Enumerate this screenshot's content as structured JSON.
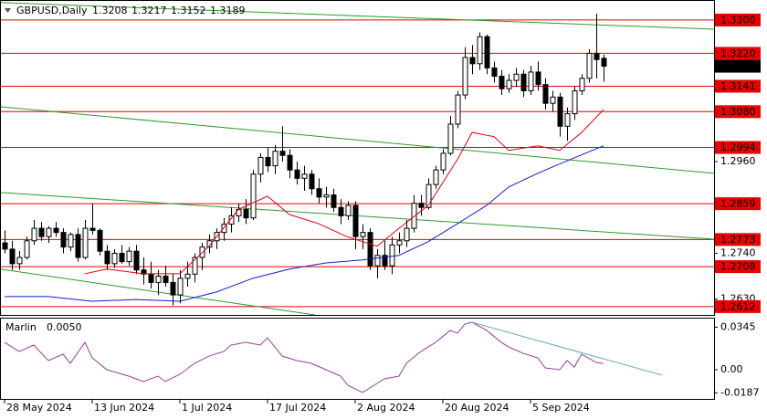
{
  "chart_data": [
    {
      "type": "candlestick",
      "title": "GBPUSD,Daily",
      "categories": [
        "28 May 2024",
        null,
        null,
        null,
        null,
        null,
        null,
        null,
        null,
        null,
        null,
        null,
        "13 Jun 2024",
        null,
        null,
        null,
        null,
        null,
        null,
        null,
        null,
        null,
        null,
        null,
        "1 Jul 2024",
        null,
        null,
        null,
        null,
        null,
        null,
        null,
        null,
        null,
        null,
        null,
        "17 Jul 2024",
        null,
        null,
        null,
        null,
        null,
        null,
        null,
        null,
        null,
        null,
        null,
        "2 Aug 2024",
        null,
        null,
        null,
        null,
        null,
        null,
        null,
        null,
        null,
        null,
        null,
        "20 Aug 2024",
        null,
        null,
        null,
        null,
        null,
        null,
        null,
        null,
        null,
        null,
        null,
        "5 Sep 2024",
        null,
        null,
        null,
        null,
        null,
        null,
        null,
        null,
        null,
        null
      ],
      "xlim": [
        -0.625,
        97.125
      ],
      "ylim": [
        1.2592,
        1.3348
      ],
      "open": [
        1.2765,
        1.275,
        1.2715,
        1.273,
        1.277,
        1.28,
        1.278,
        1.28,
        1.279,
        1.2755,
        1.2785,
        1.273,
        1.28,
        1.2795,
        1.2745,
        1.2715,
        1.274,
        1.272,
        1.2745,
        1.27,
        1.269,
        1.267,
        1.2685,
        1.267,
        1.264,
        1.268,
        1.269,
        1.273,
        1.2755,
        1.277,
        1.279,
        1.281,
        1.283,
        1.2845,
        1.2825,
        1.293,
        1.297,
        1.295,
        1.2985,
        1.2975,
        1.294,
        1.292,
        1.293,
        1.2895,
        1.2875,
        1.288,
        1.285,
        1.283,
        1.2855,
        1.278,
        1.279,
        1.271,
        1.2735,
        1.271,
        1.276,
        1.277,
        1.28,
        1.286,
        1.285,
        1.2905,
        1.294,
        1.298,
        1.305,
        1.312,
        1.321,
        1.3195,
        1.326,
        1.3185,
        1.3165,
        1.3135,
        1.3155,
        1.317,
        1.313,
        1.3175,
        1.3145,
        1.31,
        1.3115,
        1.3045,
        1.3075,
        1.313,
        1.316,
        1.322,
        1.3208
      ],
      "high": [
        1.2795,
        1.277,
        1.2745,
        1.278,
        1.282,
        1.2815,
        1.2805,
        1.2815,
        1.28,
        1.279,
        1.28,
        1.282,
        1.286,
        1.28,
        1.276,
        1.275,
        1.276,
        1.2755,
        1.276,
        1.273,
        1.272,
        1.27,
        1.271,
        1.269,
        1.27,
        1.272,
        1.274,
        1.2765,
        1.2785,
        1.28,
        1.2825,
        1.285,
        1.286,
        1.287,
        1.294,
        1.298,
        1.2995,
        1.3,
        1.3045,
        1.299,
        1.296,
        1.295,
        1.294,
        1.292,
        1.29,
        1.2895,
        1.287,
        1.2865,
        1.2865,
        1.281,
        1.28,
        1.275,
        1.277,
        1.278,
        1.279,
        1.282,
        1.288,
        1.288,
        1.292,
        1.295,
        1.299,
        1.307,
        1.313,
        1.3235,
        1.324,
        1.327,
        1.3265,
        1.32,
        1.318,
        1.317,
        1.3185,
        1.318,
        1.319,
        1.32,
        1.316,
        1.313,
        1.3125,
        1.309,
        1.314,
        1.317,
        1.323,
        1.3315,
        1.3217
      ],
      "low": [
        1.274,
        1.27,
        1.27,
        1.2725,
        1.276,
        1.277,
        1.2765,
        1.278,
        1.274,
        1.2745,
        1.272,
        1.2725,
        1.2785,
        1.2735,
        1.27,
        1.2705,
        1.2715,
        1.271,
        1.269,
        1.2665,
        1.2655,
        1.264,
        1.266,
        1.2615,
        1.262,
        1.266,
        1.267,
        1.27,
        1.274,
        1.275,
        1.277,
        1.279,
        1.2815,
        1.281,
        1.282,
        1.291,
        1.2935,
        1.293,
        1.296,
        1.292,
        1.2905,
        1.289,
        1.288,
        1.286,
        1.285,
        1.284,
        1.281,
        1.282,
        1.275,
        1.275,
        1.27,
        1.268,
        1.27,
        1.269,
        1.274,
        1.2755,
        1.279,
        1.283,
        1.2845,
        1.2895,
        1.293,
        1.2975,
        1.304,
        1.311,
        1.317,
        1.318,
        1.317,
        1.315,
        1.312,
        1.3125,
        1.314,
        1.3115,
        1.312,
        1.313,
        1.3085,
        1.308,
        1.302,
        1.301,
        1.306,
        1.312,
        1.315,
        1.316,
        1.3152
      ],
      "close": [
        1.275,
        1.2715,
        1.273,
        1.277,
        1.28,
        1.278,
        1.28,
        1.279,
        1.2755,
        1.2785,
        1.273,
        1.28,
        1.2795,
        1.2745,
        1.2715,
        1.274,
        1.272,
        1.2745,
        1.27,
        1.269,
        1.267,
        1.2685,
        1.267,
        1.264,
        1.268,
        1.269,
        1.273,
        1.2755,
        1.277,
        1.279,
        1.281,
        1.283,
        1.2845,
        1.2825,
        1.293,
        1.297,
        1.295,
        1.2985,
        1.2975,
        1.294,
        1.292,
        1.293,
        1.2895,
        1.2875,
        1.288,
        1.285,
        1.283,
        1.2855,
        1.278,
        1.279,
        1.271,
        1.2735,
        1.271,
        1.276,
        1.277,
        1.28,
        1.286,
        1.285,
        1.2905,
        1.294,
        1.298,
        1.305,
        1.312,
        1.321,
        1.3195,
        1.326,
        1.3185,
        1.3165,
        1.3135,
        1.3155,
        1.317,
        1.313,
        1.3175,
        1.3145,
        1.31,
        1.3115,
        1.3045,
        1.3075,
        1.313,
        1.316,
        1.322,
        1.3205,
        1.3189
      ],
      "up_color": "#ffffff",
      "down_color": "#000000",
      "yticks": [
        {
          "value": 1.296,
          "label": "1.2960"
        },
        {
          "value": 1.274,
          "label": "1.2740"
        },
        {
          "value": 1.263,
          "label": "1.2630"
        }
      ],
      "levels": [
        {
          "value": 1.33,
          "label": "1.3300"
        },
        {
          "value": 1.322,
          "label": "1.3220"
        },
        1.3141,
        {
          "value": 1.308,
          "label": "1.3080"
        },
        1.2994,
        1.2859,
        1.2773,
        1.2708,
        1.2612
      ],
      "level_color": "#e60000",
      "lines": [
        {
          "color": "#e0000a",
          "x": [
            11,
            14,
            19,
            24,
            28,
            32,
            36,
            39,
            43,
            47,
            51,
            54,
            58,
            62,
            64,
            67,
            69,
            73,
            76,
            79,
            82
          ],
          "values": [
            1.2691,
            1.2702,
            1.2691,
            1.2691,
            1.2757,
            1.2845,
            1.2877,
            1.2833,
            1.2811,
            1.2779,
            1.2757,
            1.28,
            1.2855,
            1.2965,
            1.303,
            1.302,
            1.2987,
            1.2998,
            1.2987,
            1.303,
            1.3085
          ]
        },
        {
          "color": "#1020c8",
          "x": [
            0,
            6,
            12,
            18,
            24,
            29,
            34,
            39,
            44,
            49,
            54,
            58,
            62,
            66,
            69,
            73,
            77,
            82
          ],
          "values": [
            1.2636,
            1.2636,
            1.2625,
            1.2629,
            1.2625,
            1.2647,
            1.268,
            1.2702,
            1.2717,
            1.2724,
            1.2735,
            1.2768,
            1.2811,
            1.2855,
            1.2899,
            1.2932,
            1.2962,
            1.2998
          ]
        }
      ],
      "trendlines": [
        {
          "color": "#2e9a2e",
          "x": [
            -0.625,
            97.125
          ],
          "values": [
            1.3342,
            1.3278
          ]
        },
        {
          "color": "#2e9a2e",
          "x": [
            -0.625,
            97.125
          ],
          "values": [
            1.3092,
            1.2932
          ]
        },
        {
          "color": "#2e9a2e",
          "x": [
            -0.625,
            97.125
          ],
          "values": [
            1.2886,
            1.2774
          ]
        },
        {
          "color": "#2e9a2e",
          "x": [
            -0.625,
            42.5
          ],
          "values": [
            1.2702,
            1.2592
          ]
        }
      ]
    },
    {
      "type": "line",
      "title": "Marlin",
      "current": {
        "value": 0.005,
        "label": "0.0050"
      },
      "xlim": [
        -0.625,
        97.125
      ],
      "ylim": [
        -0.0237,
        0.0415
      ],
      "yticks": [
        0.0345,
        {
          "value": 0,
          "label": "0.00"
        },
        -0.0187
      ],
      "color": "#9a3c9a",
      "x": [
        0,
        2,
        4,
        6,
        8,
        9,
        11,
        12,
        14,
        17,
        19,
        21,
        22,
        24,
        26,
        28,
        30,
        31,
        33,
        35,
        36,
        38,
        40,
        42,
        44,
        46,
        47,
        49,
        51,
        52,
        54,
        55,
        57,
        59,
        61,
        62,
        63,
        64,
        66,
        68,
        69,
        71,
        73,
        74,
        76,
        77,
        78,
        79,
        81,
        82
      ],
      "values": [
        0.0222,
        0.0148,
        0.02,
        0.0074,
        0.0126,
        0.0052,
        0.0222,
        0.0096,
        0,
        -0.0052,
        -0.0096,
        -0.0052,
        -0.0096,
        -0.0037,
        0.0052,
        0.0111,
        0.0148,
        0.02,
        0.0222,
        0.02,
        0.0259,
        0.0111,
        0.0074,
        0.0052,
        0,
        -0.0052,
        -0.0126,
        -0.0185,
        -0.0111,
        -0.0074,
        -0.0052,
        0.0052,
        0.0148,
        0.0222,
        0.0319,
        0.0296,
        0.037,
        0.0385,
        0.0319,
        0.0222,
        0.0185,
        0.0133,
        0.0096,
        0.0015,
        0,
        0.0074,
        0.0022,
        0.0126,
        0.0059,
        0.005
      ],
      "trendline": {
        "color": "#5aa8b0",
        "x": [
          64,
          90
        ],
        "values": [
          0.0385,
          -0.0044
        ]
      }
    }
  ]
}
